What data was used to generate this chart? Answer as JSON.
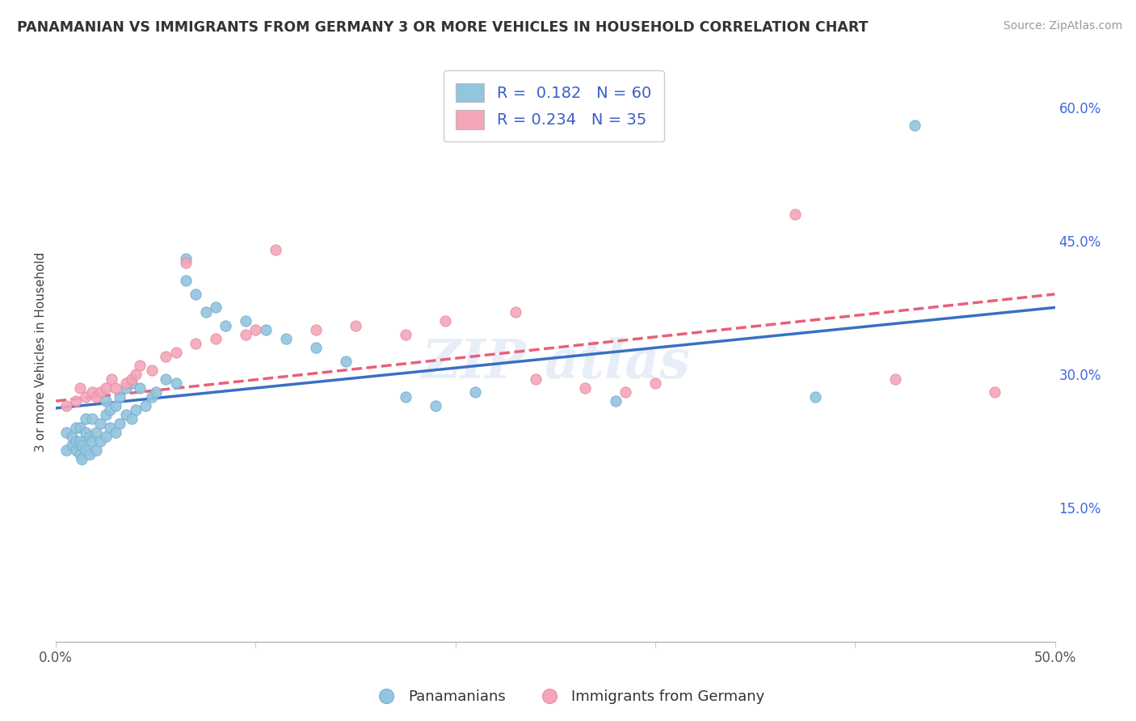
{
  "title": "PANAMANIAN VS IMMIGRANTS FROM GERMANY 3 OR MORE VEHICLES IN HOUSEHOLD CORRELATION CHART",
  "source": "Source: ZipAtlas.com",
  "ylabel": "3 or more Vehicles in Household",
  "xlim": [
    0.0,
    0.5
  ],
  "ylim": [
    0.0,
    0.65
  ],
  "blue_color": "#92c5de",
  "pink_color": "#f4a6b8",
  "blue_line_color": "#3a6fc4",
  "pink_line_color": "#e8607a",
  "right_axis_color": "#4169e1",
  "blue_dots_x": [
    0.005,
    0.005,
    0.008,
    0.008,
    0.01,
    0.01,
    0.01,
    0.012,
    0.012,
    0.012,
    0.013,
    0.013,
    0.015,
    0.015,
    0.015,
    0.017,
    0.017,
    0.018,
    0.018,
    0.02,
    0.02,
    0.022,
    0.022,
    0.025,
    0.025,
    0.025,
    0.027,
    0.027,
    0.03,
    0.03,
    0.032,
    0.032,
    0.035,
    0.035,
    0.038,
    0.038,
    0.04,
    0.042,
    0.045,
    0.048,
    0.05,
    0.055,
    0.06,
    0.065,
    0.065,
    0.07,
    0.075,
    0.08,
    0.085,
    0.095,
    0.105,
    0.115,
    0.13,
    0.145,
    0.175,
    0.19,
    0.21,
    0.28,
    0.38,
    0.43
  ],
  "blue_dots_y": [
    0.215,
    0.235,
    0.22,
    0.23,
    0.215,
    0.225,
    0.24,
    0.21,
    0.225,
    0.24,
    0.205,
    0.22,
    0.215,
    0.235,
    0.25,
    0.21,
    0.23,
    0.225,
    0.25,
    0.215,
    0.235,
    0.225,
    0.245,
    0.23,
    0.255,
    0.27,
    0.24,
    0.26,
    0.235,
    0.265,
    0.245,
    0.275,
    0.255,
    0.285,
    0.25,
    0.29,
    0.26,
    0.285,
    0.265,
    0.275,
    0.28,
    0.295,
    0.29,
    0.405,
    0.43,
    0.39,
    0.37,
    0.375,
    0.355,
    0.36,
    0.35,
    0.34,
    0.33,
    0.315,
    0.275,
    0.265,
    0.28,
    0.27,
    0.275,
    0.58
  ],
  "pink_dots_x": [
    0.005,
    0.01,
    0.012,
    0.015,
    0.018,
    0.02,
    0.022,
    0.025,
    0.028,
    0.03,
    0.035,
    0.038,
    0.04,
    0.042,
    0.048,
    0.055,
    0.06,
    0.065,
    0.07,
    0.08,
    0.095,
    0.1,
    0.11,
    0.13,
    0.15,
    0.175,
    0.195,
    0.23,
    0.24,
    0.265,
    0.285,
    0.3,
    0.37,
    0.42,
    0.47
  ],
  "pink_dots_y": [
    0.265,
    0.27,
    0.285,
    0.275,
    0.28,
    0.275,
    0.28,
    0.285,
    0.295,
    0.285,
    0.29,
    0.295,
    0.3,
    0.31,
    0.305,
    0.32,
    0.325,
    0.425,
    0.335,
    0.34,
    0.345,
    0.35,
    0.44,
    0.35,
    0.355,
    0.345,
    0.36,
    0.37,
    0.295,
    0.285,
    0.28,
    0.29,
    0.48,
    0.295,
    0.28
  ]
}
